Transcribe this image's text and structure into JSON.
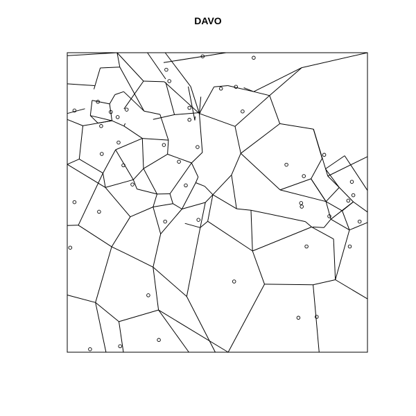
{
  "title": "DAVO",
  "chart_data": {
    "type": "voronoi",
    "title": "DAVO",
    "xlim": [
      0,
      1
    ],
    "ylim": [
      0,
      1
    ],
    "grid": false,
    "stroke_color": "#000000",
    "background_color": "#ffffff",
    "points": [
      [
        0.451,
        0.988
      ],
      [
        0.621,
        0.983
      ],
      [
        0.33,
        0.943
      ],
      [
        0.34,
        0.905
      ],
      [
        0.102,
        0.836
      ],
      [
        0.024,
        0.807
      ],
      [
        0.145,
        0.802
      ],
      [
        0.198,
        0.81
      ],
      [
        0.113,
        0.755
      ],
      [
        0.168,
        0.785
      ],
      [
        0.512,
        0.88
      ],
      [
        0.562,
        0.886
      ],
      [
        0.584,
        0.804
      ],
      [
        0.407,
        0.816
      ],
      [
        0.407,
        0.776
      ],
      [
        0.322,
        0.692
      ],
      [
        0.434,
        0.685
      ],
      [
        0.171,
        0.7
      ],
      [
        0.115,
        0.662
      ],
      [
        0.187,
        0.624
      ],
      [
        0.372,
        0.636
      ],
      [
        0.217,
        0.56
      ],
      [
        0.395,
        0.557
      ],
      [
        0.024,
        0.501
      ],
      [
        0.106,
        0.469
      ],
      [
        0.01,
        0.349
      ],
      [
        0.326,
        0.436
      ],
      [
        0.437,
        0.442
      ],
      [
        0.73,
        0.626
      ],
      [
        0.788,
        0.588
      ],
      [
        0.856,
        0.659
      ],
      [
        0.779,
        0.498
      ],
      [
        0.781,
        0.486
      ],
      [
        0.948,
        0.569
      ],
      [
        0.873,
        0.454
      ],
      [
        0.936,
        0.506
      ],
      [
        0.953,
        0.524
      ],
      [
        0.974,
        0.436
      ],
      [
        0.797,
        0.353
      ],
      [
        0.941,
        0.353
      ],
      [
        0.556,
        0.236
      ],
      [
        0.27,
        0.19
      ],
      [
        0.77,
        0.115
      ],
      [
        0.831,
        0.118
      ],
      [
        0.305,
        0.041
      ],
      [
        0.076,
        0.01
      ],
      [
        0.176,
        0.02
      ]
    ],
    "edges": [
      [
        0.0,
        0.99,
        0.166,
        1.0
      ],
      [
        0.267,
        1.0,
        0.328,
        0.912
      ],
      [
        0.529,
        1.0,
        0.321,
        0.967
      ],
      [
        0.166,
        1.0,
        0.254,
        0.905
      ],
      [
        0.254,
        0.905,
        0.189,
        0.812
      ],
      [
        0.254,
        0.905,
        0.323,
        0.903
      ],
      [
        0.326,
        1.0,
        0.411,
        0.887
      ],
      [
        0.411,
        0.887,
        0.44,
        0.797
      ],
      [
        0.403,
        0.887,
        0.425,
        0.774
      ],
      [
        0.44,
        0.797,
        0.445,
        0.853
      ],
      [
        0.425,
        0.774,
        0.426,
        0.787
      ],
      [
        0.323,
        0.903,
        0.44,
        0.797
      ],
      [
        0.328,
        0.901,
        0.357,
        0.793
      ],
      [
        0.357,
        0.793,
        0.286,
        0.777
      ],
      [
        0.357,
        0.793,
        0.444,
        0.8
      ],
      [
        0.44,
        0.797,
        0.489,
        0.886
      ],
      [
        0.489,
        0.886,
        0.535,
        0.89
      ],
      [
        0.535,
        0.89,
        0.621,
        0.87
      ],
      [
        0.621,
        0.87,
        0.781,
        0.95
      ],
      [
        0.781,
        0.95,
        1.0,
        1.0
      ],
      [
        0.621,
        0.87,
        0.588,
        0.883
      ],
      [
        0.077,
        0.79,
        0.149,
        0.773
      ],
      [
        0.149,
        0.773,
        0.141,
        0.829
      ],
      [
        0.141,
        0.829,
        0.159,
        0.86
      ],
      [
        0.159,
        0.86,
        0.188,
        0.87
      ],
      [
        0.188,
        0.87,
        0.256,
        0.805
      ],
      [
        0.256,
        0.805,
        0.309,
        0.794
      ],
      [
        0.309,
        0.794,
        0.337,
        0.708
      ],
      [
        0.337,
        0.708,
        0.25,
        0.714
      ],
      [
        0.25,
        0.714,
        0.189,
        0.755
      ],
      [
        0.189,
        0.755,
        0.193,
        0.764
      ],
      [
        0.189,
        0.755,
        0.149,
        0.773
      ],
      [
        0.149,
        0.773,
        0.102,
        0.765
      ],
      [
        0.102,
        0.765,
        0.077,
        0.79
      ],
      [
        0.077,
        0.79,
        0.083,
        0.841
      ],
      [
        0.083,
        0.841,
        0.141,
        0.829
      ],
      [
        0.059,
        0.813,
        0.0,
        0.797
      ],
      [
        0.091,
        0.89,
        0.0,
        0.896
      ],
      [
        0.089,
        0.878,
        0.11,
        0.949
      ],
      [
        0.11,
        0.949,
        0.175,
        0.952
      ],
      [
        0.175,
        0.952,
        0.166,
        1.0
      ],
      [
        0.175,
        0.952,
        0.256,
        0.805
      ],
      [
        0.0,
        0.777,
        0.052,
        0.756
      ],
      [
        0.052,
        0.756,
        0.148,
        0.773
      ],
      [
        0.052,
        0.756,
        0.04,
        0.645
      ],
      [
        0.04,
        0.645,
        0.119,
        0.598
      ],
      [
        0.119,
        0.598,
        0.161,
        0.676
      ],
      [
        0.161,
        0.676,
        0.25,
        0.714
      ],
      [
        0.25,
        0.714,
        0.254,
        0.613
      ],
      [
        0.254,
        0.613,
        0.22,
        0.576
      ],
      [
        0.22,
        0.576,
        0.161,
        0.676
      ],
      [
        0.119,
        0.598,
        0.127,
        0.55
      ],
      [
        0.127,
        0.55,
        0.22,
        0.576
      ],
      [
        0.127,
        0.55,
        0.0,
        0.627
      ],
      [
        0.0,
        0.627,
        0.04,
        0.645
      ],
      [
        0.22,
        0.576,
        0.232,
        0.545
      ],
      [
        0.232,
        0.545,
        0.299,
        0.528
      ],
      [
        0.299,
        0.528,
        0.342,
        0.529
      ],
      [
        0.342,
        0.529,
        0.414,
        0.632
      ],
      [
        0.414,
        0.632,
        0.334,
        0.661
      ],
      [
        0.334,
        0.661,
        0.254,
        0.613
      ],
      [
        0.334,
        0.661,
        0.337,
        0.708
      ],
      [
        0.254,
        0.613,
        0.299,
        0.528
      ],
      [
        0.414,
        0.632,
        0.45,
        0.667
      ],
      [
        0.45,
        0.667,
        0.44,
        0.797
      ],
      [
        0.127,
        0.55,
        0.21,
        0.452
      ],
      [
        0.21,
        0.452,
        0.286,
        0.485
      ],
      [
        0.286,
        0.485,
        0.299,
        0.528
      ],
      [
        0.286,
        0.485,
        0.352,
        0.496
      ],
      [
        0.352,
        0.496,
        0.342,
        0.529
      ],
      [
        0.352,
        0.496,
        0.382,
        0.478
      ],
      [
        0.382,
        0.478,
        0.428,
        0.566
      ],
      [
        0.428,
        0.566,
        0.436,
        0.585
      ],
      [
        0.436,
        0.585,
        0.414,
        0.632
      ],
      [
        0.286,
        0.485,
        0.311,
        0.395
      ],
      [
        0.311,
        0.395,
        0.382,
        0.478
      ],
      [
        0.311,
        0.395,
        0.286,
        0.284
      ],
      [
        0.286,
        0.284,
        0.398,
        0.186
      ],
      [
        0.398,
        0.186,
        0.443,
        0.416
      ],
      [
        0.443,
        0.416,
        0.46,
        0.5
      ],
      [
        0.46,
        0.5,
        0.382,
        0.478
      ],
      [
        0.443,
        0.416,
        0.392,
        0.43
      ],
      [
        0.0,
        0.423,
        0.037,
        0.424
      ],
      [
        0.037,
        0.424,
        0.119,
        0.598
      ],
      [
        0.037,
        0.424,
        0.148,
        0.352
      ],
      [
        0.148,
        0.352,
        0.21,
        0.452
      ],
      [
        0.148,
        0.352,
        0.196,
        0.329
      ],
      [
        0.196,
        0.329,
        0.286,
        0.284
      ],
      [
        0.0,
        0.191,
        0.094,
        0.166
      ],
      [
        0.094,
        0.166,
        0.148,
        0.352
      ],
      [
        0.094,
        0.166,
        0.172,
        0.102
      ],
      [
        0.172,
        0.102,
        0.304,
        0.141
      ],
      [
        0.304,
        0.141,
        0.286,
        0.284
      ],
      [
        0.304,
        0.141,
        0.405,
        0.0
      ],
      [
        0.172,
        0.102,
        0.187,
        0.0
      ],
      [
        0.094,
        0.166,
        0.129,
        0.0
      ],
      [
        0.304,
        0.141,
        0.536,
        0.0
      ],
      [
        0.398,
        0.186,
        0.493,
        0.0
      ],
      [
        0.443,
        0.416,
        0.468,
        0.437
      ],
      [
        0.468,
        0.437,
        0.485,
        0.526
      ],
      [
        0.485,
        0.526,
        0.46,
        0.5
      ],
      [
        0.485,
        0.526,
        0.458,
        0.554
      ],
      [
        0.458,
        0.554,
        0.428,
        0.566
      ],
      [
        0.468,
        0.437,
        0.617,
        0.338
      ],
      [
        0.617,
        0.338,
        0.657,
        0.227
      ],
      [
        0.657,
        0.227,
        0.819,
        0.225
      ],
      [
        0.819,
        0.225,
        0.893,
        0.242
      ],
      [
        0.893,
        0.242,
        1.0,
        0.178
      ],
      [
        0.893,
        0.242,
        0.887,
        0.378
      ],
      [
        0.887,
        0.378,
        0.814,
        0.418
      ],
      [
        0.814,
        0.418,
        0.617,
        0.338
      ],
      [
        0.814,
        0.418,
        0.793,
        0.436
      ],
      [
        0.793,
        0.436,
        0.612,
        0.474
      ],
      [
        0.612,
        0.474,
        0.617,
        0.338
      ],
      [
        0.612,
        0.474,
        0.564,
        0.479
      ],
      [
        0.564,
        0.479,
        0.485,
        0.526
      ],
      [
        0.819,
        0.225,
        0.839,
        0.0
      ],
      [
        0.657,
        0.227,
        0.536,
        0.0
      ],
      [
        0.564,
        0.479,
        0.547,
        0.592
      ],
      [
        0.547,
        0.592,
        0.485,
        0.526
      ],
      [
        0.547,
        0.592,
        0.578,
        0.664
      ],
      [
        0.578,
        0.664,
        0.709,
        0.542
      ],
      [
        0.709,
        0.542,
        0.862,
        0.503
      ],
      [
        0.862,
        0.503,
        0.812,
        0.579
      ],
      [
        0.812,
        0.579,
        0.709,
        0.542
      ],
      [
        0.812,
        0.579,
        0.849,
        0.647
      ],
      [
        0.849,
        0.647,
        0.82,
        0.745
      ],
      [
        0.82,
        0.745,
        0.708,
        0.763
      ],
      [
        0.708,
        0.763,
        0.578,
        0.664
      ],
      [
        0.708,
        0.763,
        0.674,
        0.857
      ],
      [
        0.674,
        0.857,
        0.621,
        0.87
      ],
      [
        0.674,
        0.857,
        0.781,
        0.95
      ],
      [
        0.578,
        0.664,
        0.559,
        0.754
      ],
      [
        0.559,
        0.754,
        0.44,
        0.797
      ],
      [
        0.559,
        0.754,
        0.674,
        0.857
      ],
      [
        0.82,
        0.745,
        0.868,
        0.588
      ],
      [
        0.868,
        0.588,
        0.906,
        0.55
      ],
      [
        0.906,
        0.55,
        0.862,
        0.503
      ],
      [
        0.868,
        0.588,
        1.0,
        0.653
      ],
      [
        0.906,
        0.55,
        0.953,
        0.502
      ],
      [
        0.953,
        0.502,
        1.0,
        0.468
      ],
      [
        0.953,
        0.502,
        0.878,
        0.444
      ],
      [
        0.878,
        0.444,
        0.862,
        0.503
      ],
      [
        0.878,
        0.444,
        0.855,
        0.416
      ],
      [
        0.855,
        0.416,
        0.817,
        0.418
      ],
      [
        0.893,
        0.242,
        0.94,
        0.408
      ],
      [
        0.94,
        0.408,
        0.878,
        0.444
      ],
      [
        0.94,
        0.408,
        1.0,
        0.433
      ],
      [
        0.862,
        0.503,
        0.916,
        0.472
      ],
      [
        0.916,
        0.472,
        0.953,
        0.502
      ],
      [
        0.916,
        0.472,
        0.94,
        0.408
      ],
      [
        0.862,
        0.503,
        0.812,
        0.579
      ],
      [
        0.906,
        0.55,
        0.86,
        0.612
      ],
      [
        0.86,
        0.612,
        0.924,
        0.656
      ],
      [
        0.924,
        0.656,
        1.0,
        0.54
      ]
    ]
  }
}
